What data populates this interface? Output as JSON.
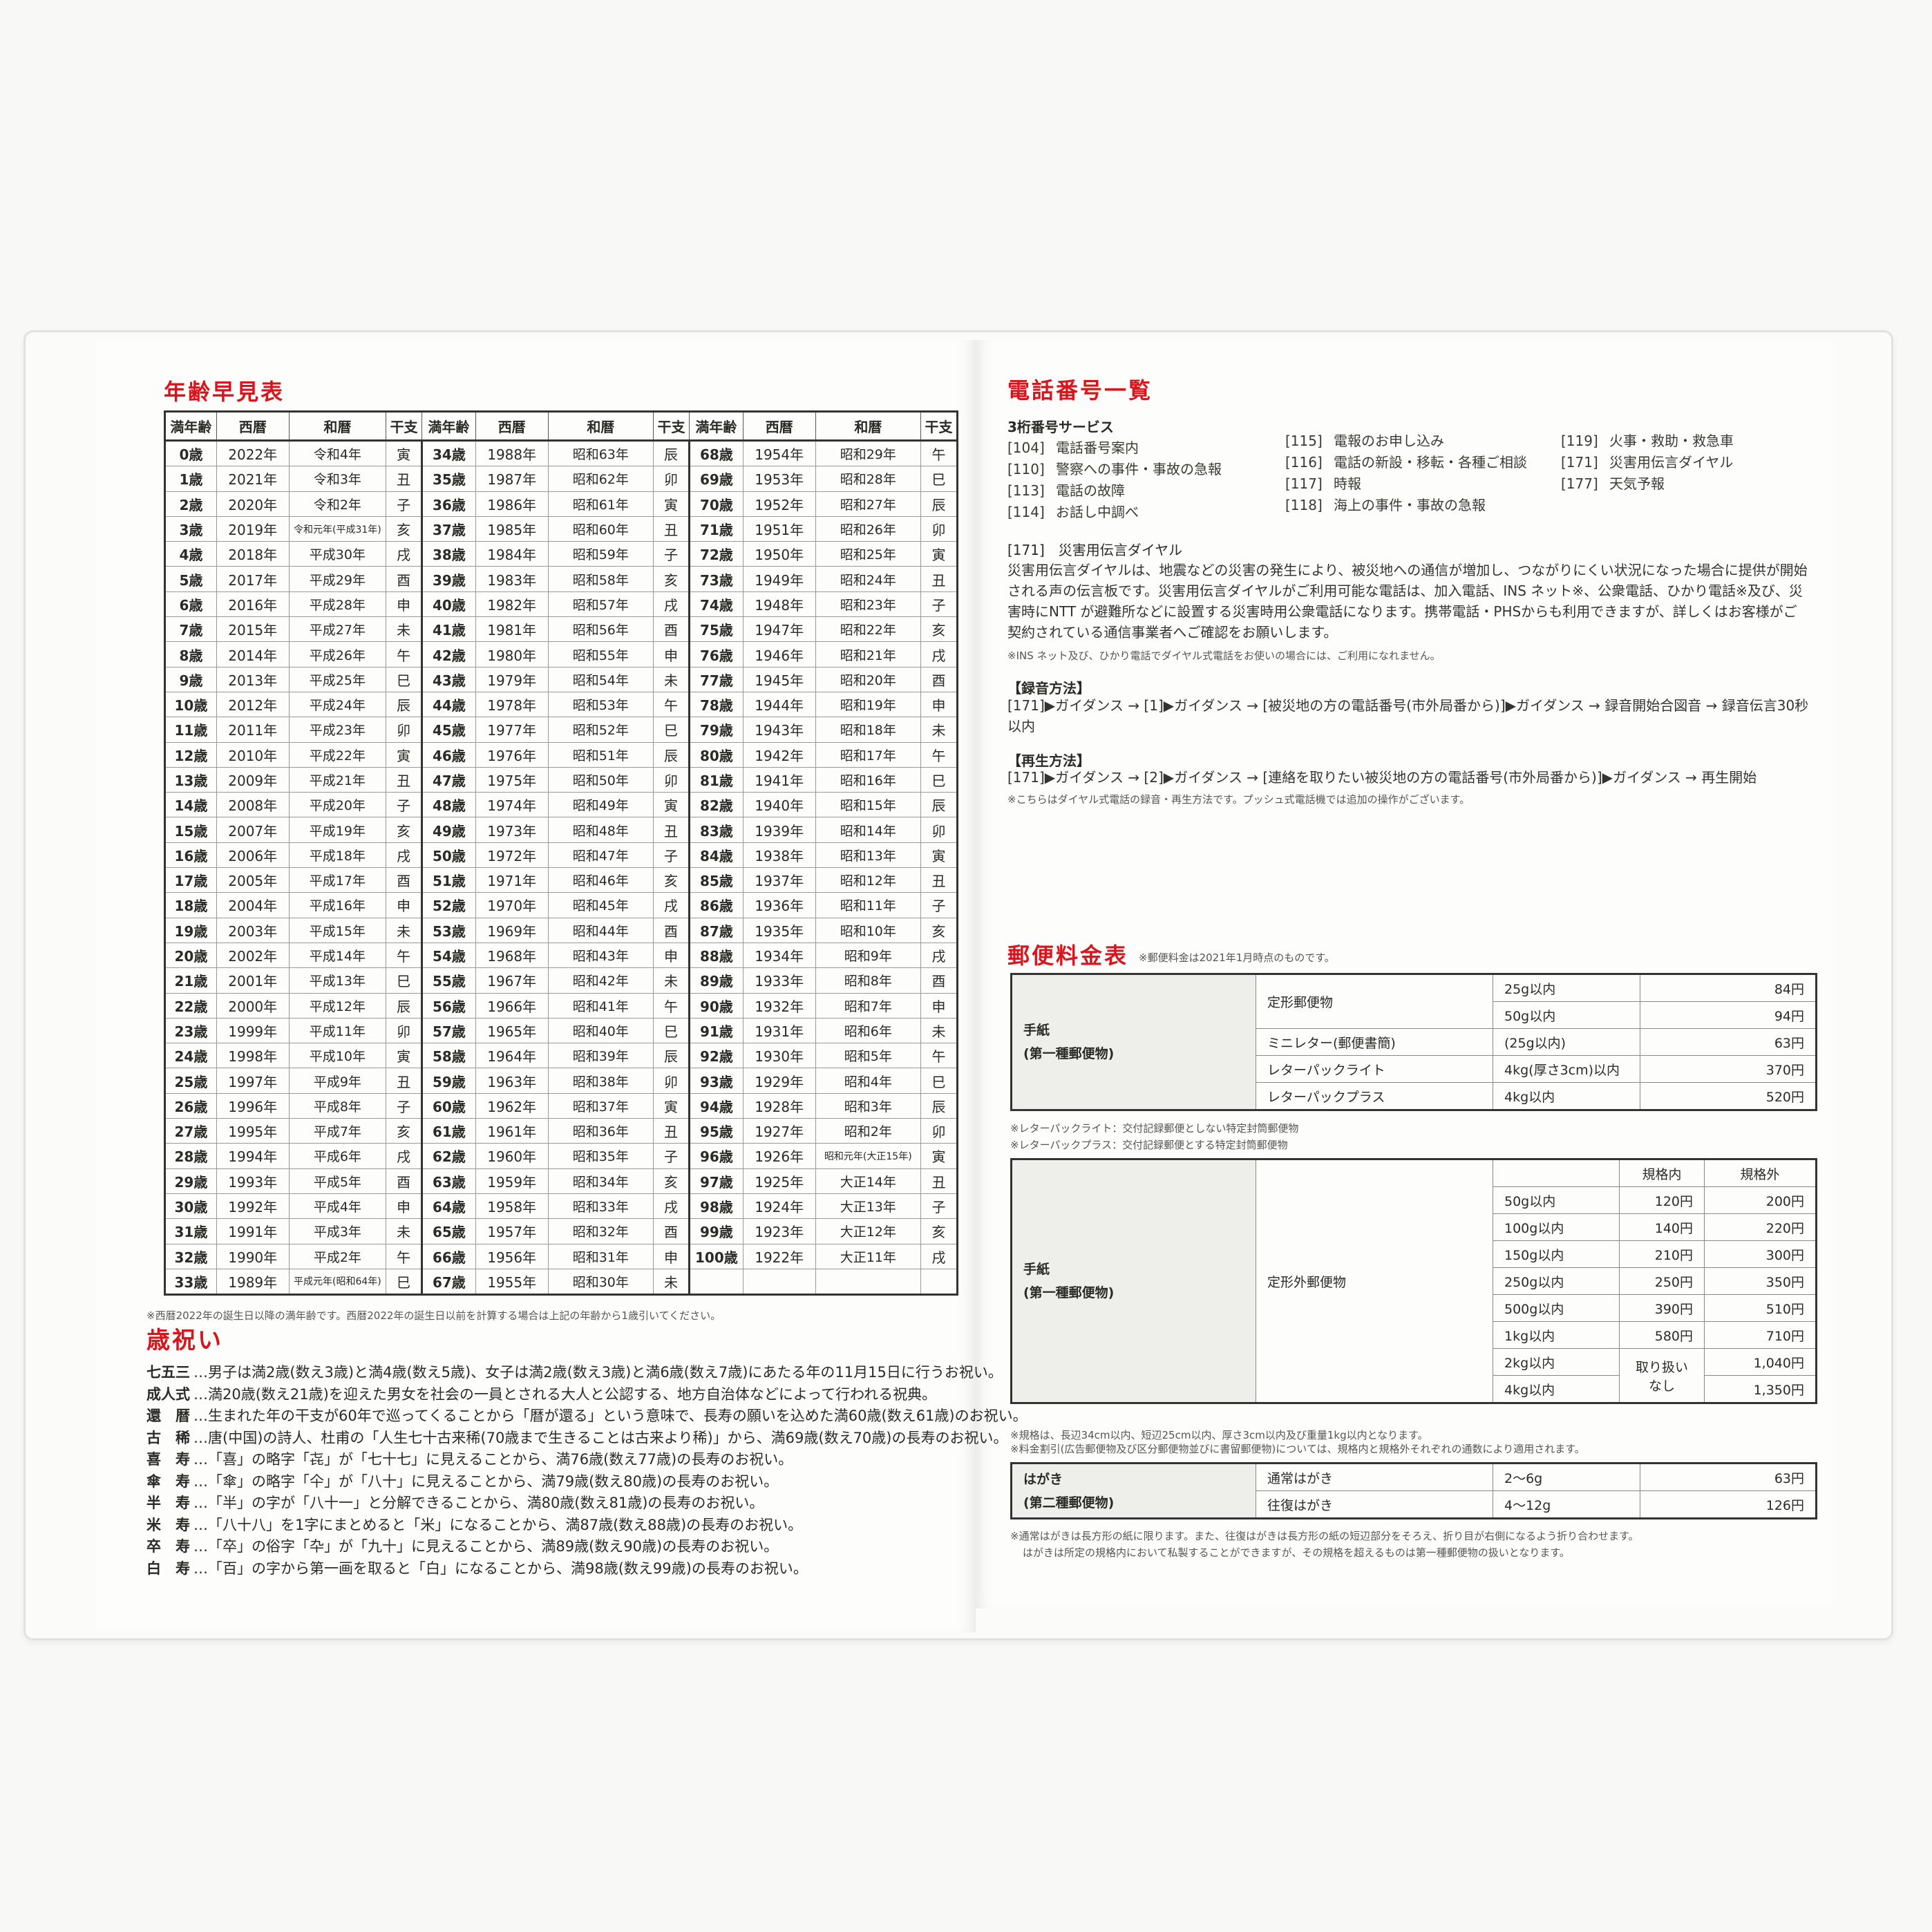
{
  "age_table": {
    "title": "年齢早見表",
    "headers": [
      "満年齢",
      "西暦",
      "和暦",
      "干支"
    ],
    "columns": [
      [
        [
          "0歳",
          "2022年",
          "令和4年",
          "寅"
        ],
        [
          "1歳",
          "2021年",
          "令和3年",
          "丑"
        ],
        [
          "2歳",
          "2020年",
          "令和2年",
          "子"
        ],
        [
          "3歳",
          "2019年",
          "令和元年(平成31年)",
          "亥"
        ],
        [
          "4歳",
          "2018年",
          "平成30年",
          "戌"
        ],
        [
          "5歳",
          "2017年",
          "平成29年",
          "酉"
        ],
        [
          "6歳",
          "2016年",
          "平成28年",
          "申"
        ],
        [
          "7歳",
          "2015年",
          "平成27年",
          "未"
        ],
        [
          "8歳",
          "2014年",
          "平成26年",
          "午"
        ],
        [
          "9歳",
          "2013年",
          "平成25年",
          "巳"
        ],
        [
          "10歳",
          "2012年",
          "平成24年",
          "辰"
        ],
        [
          "11歳",
          "2011年",
          "平成23年",
          "卯"
        ],
        [
          "12歳",
          "2010年",
          "平成22年",
          "寅"
        ],
        [
          "13歳",
          "2009年",
          "平成21年",
          "丑"
        ],
        [
          "14歳",
          "2008年",
          "平成20年",
          "子"
        ],
        [
          "15歳",
          "2007年",
          "平成19年",
          "亥"
        ],
        [
          "16歳",
          "2006年",
          "平成18年",
          "戌"
        ],
        [
          "17歳",
          "2005年",
          "平成17年",
          "酉"
        ],
        [
          "18歳",
          "2004年",
          "平成16年",
          "申"
        ],
        [
          "19歳",
          "2003年",
          "平成15年",
          "未"
        ],
        [
          "20歳",
          "2002年",
          "平成14年",
          "午"
        ],
        [
          "21歳",
          "2001年",
          "平成13年",
          "巳"
        ],
        [
          "22歳",
          "2000年",
          "平成12年",
          "辰"
        ],
        [
          "23歳",
          "1999年",
          "平成11年",
          "卯"
        ],
        [
          "24歳",
          "1998年",
          "平成10年",
          "寅"
        ],
        [
          "25歳",
          "1997年",
          "平成9年",
          "丑"
        ],
        [
          "26歳",
          "1996年",
          "平成8年",
          "子"
        ],
        [
          "27歳",
          "1995年",
          "平成7年",
          "亥"
        ],
        [
          "28歳",
          "1994年",
          "平成6年",
          "戌"
        ],
        [
          "29歳",
          "1993年",
          "平成5年",
          "酉"
        ],
        [
          "30歳",
          "1992年",
          "平成4年",
          "申"
        ],
        [
          "31歳",
          "1991年",
          "平成3年",
          "未"
        ],
        [
          "32歳",
          "1990年",
          "平成2年",
          "午"
        ],
        [
          "33歳",
          "1989年",
          "平成元年(昭和64年)",
          "巳"
        ]
      ],
      [
        [
          "34歳",
          "1988年",
          "昭和63年",
          "辰"
        ],
        [
          "35歳",
          "1987年",
          "昭和62年",
          "卯"
        ],
        [
          "36歳",
          "1986年",
          "昭和61年",
          "寅"
        ],
        [
          "37歳",
          "1985年",
          "昭和60年",
          "丑"
        ],
        [
          "38歳",
          "1984年",
          "昭和59年",
          "子"
        ],
        [
          "39歳",
          "1983年",
          "昭和58年",
          "亥"
        ],
        [
          "40歳",
          "1982年",
          "昭和57年",
          "戌"
        ],
        [
          "41歳",
          "1981年",
          "昭和56年",
          "酉"
        ],
        [
          "42歳",
          "1980年",
          "昭和55年",
          "申"
        ],
        [
          "43歳",
          "1979年",
          "昭和54年",
          "未"
        ],
        [
          "44歳",
          "1978年",
          "昭和53年",
          "午"
        ],
        [
          "45歳",
          "1977年",
          "昭和52年",
          "巳"
        ],
        [
          "46歳",
          "1976年",
          "昭和51年",
          "辰"
        ],
        [
          "47歳",
          "1975年",
          "昭和50年",
          "卯"
        ],
        [
          "48歳",
          "1974年",
          "昭和49年",
          "寅"
        ],
        [
          "49歳",
          "1973年",
          "昭和48年",
          "丑"
        ],
        [
          "50歳",
          "1972年",
          "昭和47年",
          "子"
        ],
        [
          "51歳",
          "1971年",
          "昭和46年",
          "亥"
        ],
        [
          "52歳",
          "1970年",
          "昭和45年",
          "戌"
        ],
        [
          "53歳",
          "1969年",
          "昭和44年",
          "酉"
        ],
        [
          "54歳",
          "1968年",
          "昭和43年",
          "申"
        ],
        [
          "55歳",
          "1967年",
          "昭和42年",
          "未"
        ],
        [
          "56歳",
          "1966年",
          "昭和41年",
          "午"
        ],
        [
          "57歳",
          "1965年",
          "昭和40年",
          "巳"
        ],
        [
          "58歳",
          "1964年",
          "昭和39年",
          "辰"
        ],
        [
          "59歳",
          "1963年",
          "昭和38年",
          "卯"
        ],
        [
          "60歳",
          "1962年",
          "昭和37年",
          "寅"
        ],
        [
          "61歳",
          "1961年",
          "昭和36年",
          "丑"
        ],
        [
          "62歳",
          "1960年",
          "昭和35年",
          "子"
        ],
        [
          "63歳",
          "1959年",
          "昭和34年",
          "亥"
        ],
        [
          "64歳",
          "1958年",
          "昭和33年",
          "戌"
        ],
        [
          "65歳",
          "1957年",
          "昭和32年",
          "酉"
        ],
        [
          "66歳",
          "1956年",
          "昭和31年",
          "申"
        ],
        [
          "67歳",
          "1955年",
          "昭和30年",
          "未"
        ]
      ],
      [
        [
          "68歳",
          "1954年",
          "昭和29年",
          "午"
        ],
        [
          "69歳",
          "1953年",
          "昭和28年",
          "巳"
        ],
        [
          "70歳",
          "1952年",
          "昭和27年",
          "辰"
        ],
        [
          "71歳",
          "1951年",
          "昭和26年",
          "卯"
        ],
        [
          "72歳",
          "1950年",
          "昭和25年",
          "寅"
        ],
        [
          "73歳",
          "1949年",
          "昭和24年",
          "丑"
        ],
        [
          "74歳",
          "1948年",
          "昭和23年",
          "子"
        ],
        [
          "75歳",
          "1947年",
          "昭和22年",
          "亥"
        ],
        [
          "76歳",
          "1946年",
          "昭和21年",
          "戌"
        ],
        [
          "77歳",
          "1945年",
          "昭和20年",
          "酉"
        ],
        [
          "78歳",
          "1944年",
          "昭和19年",
          "申"
        ],
        [
          "79歳",
          "1943年",
          "昭和18年",
          "未"
        ],
        [
          "80歳",
          "1942年",
          "昭和17年",
          "午"
        ],
        [
          "81歳",
          "1941年",
          "昭和16年",
          "巳"
        ],
        [
          "82歳",
          "1940年",
          "昭和15年",
          "辰"
        ],
        [
          "83歳",
          "1939年",
          "昭和14年",
          "卯"
        ],
        [
          "84歳",
          "1938年",
          "昭和13年",
          "寅"
        ],
        [
          "85歳",
          "1937年",
          "昭和12年",
          "丑"
        ],
        [
          "86歳",
          "1936年",
          "昭和11年",
          "子"
        ],
        [
          "87歳",
          "1935年",
          "昭和10年",
          "亥"
        ],
        [
          "88歳",
          "1934年",
          "昭和9年",
          "戌"
        ],
        [
          "89歳",
          "1933年",
          "昭和8年",
          "酉"
        ],
        [
          "90歳",
          "1932年",
          "昭和7年",
          "申"
        ],
        [
          "91歳",
          "1931年",
          "昭和6年",
          "未"
        ],
        [
          "92歳",
          "1930年",
          "昭和5年",
          "午"
        ],
        [
          "93歳",
          "1929年",
          "昭和4年",
          "巳"
        ],
        [
          "94歳",
          "1928年",
          "昭和3年",
          "辰"
        ],
        [
          "95歳",
          "1927年",
          "昭和2年",
          "卯"
        ],
        [
          "96歳",
          "1926年",
          "昭和元年(大正15年)",
          "寅"
        ],
        [
          "97歳",
          "1925年",
          "大正14年",
          "丑"
        ],
        [
          "98歳",
          "1924年",
          "大正13年",
          "子"
        ],
        [
          "99歳",
          "1923年",
          "大正12年",
          "亥"
        ],
        [
          "100歳",
          "1922年",
          "大正11年",
          "戌"
        ]
      ]
    ],
    "footnote": "※西暦2022年の誕生日以降の満年齢です。西暦2022年の誕生日以前を計算する場合は上記の年齢から1歳引いてください。"
  },
  "iwai": {
    "title": "歳祝い",
    "items": [
      {
        "name": "七五三",
        "text": "…男子は満2歳(数え3歳)と満4歳(数え5歳)、女子は満2歳(数え3歳)と満6歳(数え7歳)にあたる年の11月15日に行うお祝い。"
      },
      {
        "name": "成人式",
        "text": "…満20歳(数え21歳)を迎えた男女を社会の一員とされる大人と公認する、地方自治体などによって行われる祝典。"
      },
      {
        "name": "還　暦",
        "text": "…生まれた年の干支が60年で巡ってくることから「暦が還る」という意味で、長寿の願いを込めた満60歳(数え61歳)のお祝い。"
      },
      {
        "name": "古　稀",
        "text": "…唐(中国)の詩人、杜甫の「人生七十古来稀(70歳まで生きることは古来より稀)」から、満69歳(数え70歳)の長寿のお祝い。"
      },
      {
        "name": "喜　寿",
        "text": "…「喜」の略字「㐂」が「七十七」に見えることから、満76歳(数え77歳)の長寿のお祝い。"
      },
      {
        "name": "傘　寿",
        "text": "…「傘」の略字「仐」が「八十」に見えることから、満79歳(数え80歳)の長寿のお祝い。"
      },
      {
        "name": "半　寿",
        "text": "…「半」の字が「八十一」と分解できることから、満80歳(数え81歳)の長寿のお祝い。"
      },
      {
        "name": "米　寿",
        "text": "…「八十八」を1字にまとめると「米」になることから、満87歳(数え88歳)の長寿のお祝い。"
      },
      {
        "name": "卒　寿",
        "text": "…「卒」の俗字「卆」が「九十」に見えることから、満89歳(数え90歳)の長寿のお祝い。"
      },
      {
        "name": "白　寿",
        "text": "…「百」の字から第一画を取ると「白」になることから、満98歳(数え99歳)の長寿のお祝い。"
      }
    ]
  },
  "phone": {
    "title": "電話番号一覧",
    "subtitle": "3桁番号サービス",
    "numbers": [
      [
        {
          "code": "[104]",
          "label": "電話番号案内"
        },
        {
          "code": "[110]",
          "label": "警察への事件・事故の急報"
        },
        {
          "code": "[113]",
          "label": "電話の故障"
        },
        {
          "code": "[114]",
          "label": "お話し中調べ"
        }
      ],
      [
        {
          "code": "[115]",
          "label": "電報のお申し込み"
        },
        {
          "code": "[116]",
          "label": "電話の新設・移転・各種ご相談"
        },
        {
          "code": "[117]",
          "label": "時報"
        },
        {
          "code": "[118]",
          "label": "海上の事件・事故の急報"
        }
      ],
      [
        {
          "code": "[119]",
          "label": "火事・救助・救急車"
        },
        {
          "code": "[171]",
          "label": "災害用伝言ダイヤル"
        },
        {
          "code": "[177]",
          "label": "天気予報"
        }
      ]
    ],
    "dial171": {
      "heading": "[171]　災害用伝言ダイヤル",
      "body": "災害用伝言ダイヤルは、地震などの災害の発生により、被災地への通信が増加し、つながりにくい状況になった場合に提供が開始される声の伝言板です。災害用伝言ダイヤルがご利用可能な電話は、加入電話、INS ネット※、公衆電話、ひかり電話※及び、災害時にNTT が避難所などに設置する災害時用公衆電話になります。携帯電話・PHSからも利用できますが、詳しくはお客様がご契約されている通信事業者へご確認をお願いします。",
      "note": "※INS ネット及び、ひかり電話でダイヤル式電話をお使いの場合には、ご利用になれません。",
      "record_heading": "【録音方法】",
      "record_body": "[171]▶ガイダンス → [1]▶ガイダンス → [被災地の方の電話番号(市外局番から)]▶ガイダンス → 録音開始合図音 → 録音伝言30秒以内",
      "play_heading": "【再生方法】",
      "play_body": "[171]▶ガイダンス → [2]▶ガイダンス → [連絡を取りたい被災地の方の電話番号(市外局番から)]▶ガイダンス → 再生開始",
      "play_note": "※こちらはダイヤル式電話の録音・再生方法です。プッシュ式電話機では追加の操作がございます。"
    }
  },
  "postal": {
    "title": "郵便料金表",
    "title_note": "※郵便料金は2021年1月時点のものです。",
    "letter_label": "手紙\n(第一種郵便物)",
    "table1": [
      {
        "type": "定形郵便物",
        "weight": "25g以内",
        "price": "84円"
      },
      {
        "type": "",
        "weight": "50g以内",
        "price": "94円"
      },
      {
        "type": "ミニレター(郵便書簡)",
        "weight": "(25g以内)",
        "price": "63円"
      },
      {
        "type": "レターパックライト",
        "weight": "4kg(厚さ3cm)以内",
        "price": "370円"
      },
      {
        "type": "レターパックプラス",
        "weight": "4kg以内",
        "price": "520円"
      }
    ],
    "table1_notes": [
      "※レターパックライト：交付記録郵便としない特定封筒郵便物",
      "※レターパックプラス：交付記録郵便とする特定封筒郵便物"
    ],
    "table2_headers": [
      "規格内",
      "規格外"
    ],
    "table2_type": "定形外郵便物",
    "table2": [
      {
        "weight": "50g以内",
        "std": "120円",
        "nonstd": "200円"
      },
      {
        "weight": "100g以内",
        "std": "140円",
        "nonstd": "220円"
      },
      {
        "weight": "150g以内",
        "std": "210円",
        "nonstd": "300円"
      },
      {
        "weight": "250g以内",
        "std": "250円",
        "nonstd": "350円"
      },
      {
        "weight": "500g以内",
        "std": "390円",
        "nonstd": "510円"
      },
      {
        "weight": "1kg以内",
        "std": "580円",
        "nonstd": "710円"
      },
      {
        "weight": "2kg以内",
        "std": "取り扱いなし",
        "nonstd": "1,040円"
      },
      {
        "weight": "4kg以内",
        "std": "",
        "nonstd": "1,350円"
      }
    ],
    "table2_notes": [
      "※規格は、長辺34cm以内、短辺25cm以内、厚さ3cm以内及び重量1kg以内となります。",
      "※料金割引(広告郵便物及び区分郵便物並びに書留郵便物)については、規格内と規格外それぞれの通数により適用されます。"
    ],
    "postcard_label": "はがき\n(第二種郵便物)",
    "table3": [
      {
        "type": "通常はがき",
        "weight": "2～6g",
        "price": "63円"
      },
      {
        "type": "往復はがき",
        "weight": "4～12g",
        "price": "126円"
      }
    ],
    "table3_notes": [
      "※通常はがきは長方形の紙に限ります。また、往復はがきは長方形の紙の短辺部分をそろえ、折り目が右側になるよう折り合わせます。",
      "はがきは所定の規格内において私製することができますが、その規格を超えるものは第一種郵便物の扱いとなります。"
    ]
  },
  "colors": {
    "title_red": "#d8141c",
    "table_grey": "#eeeeea"
  }
}
